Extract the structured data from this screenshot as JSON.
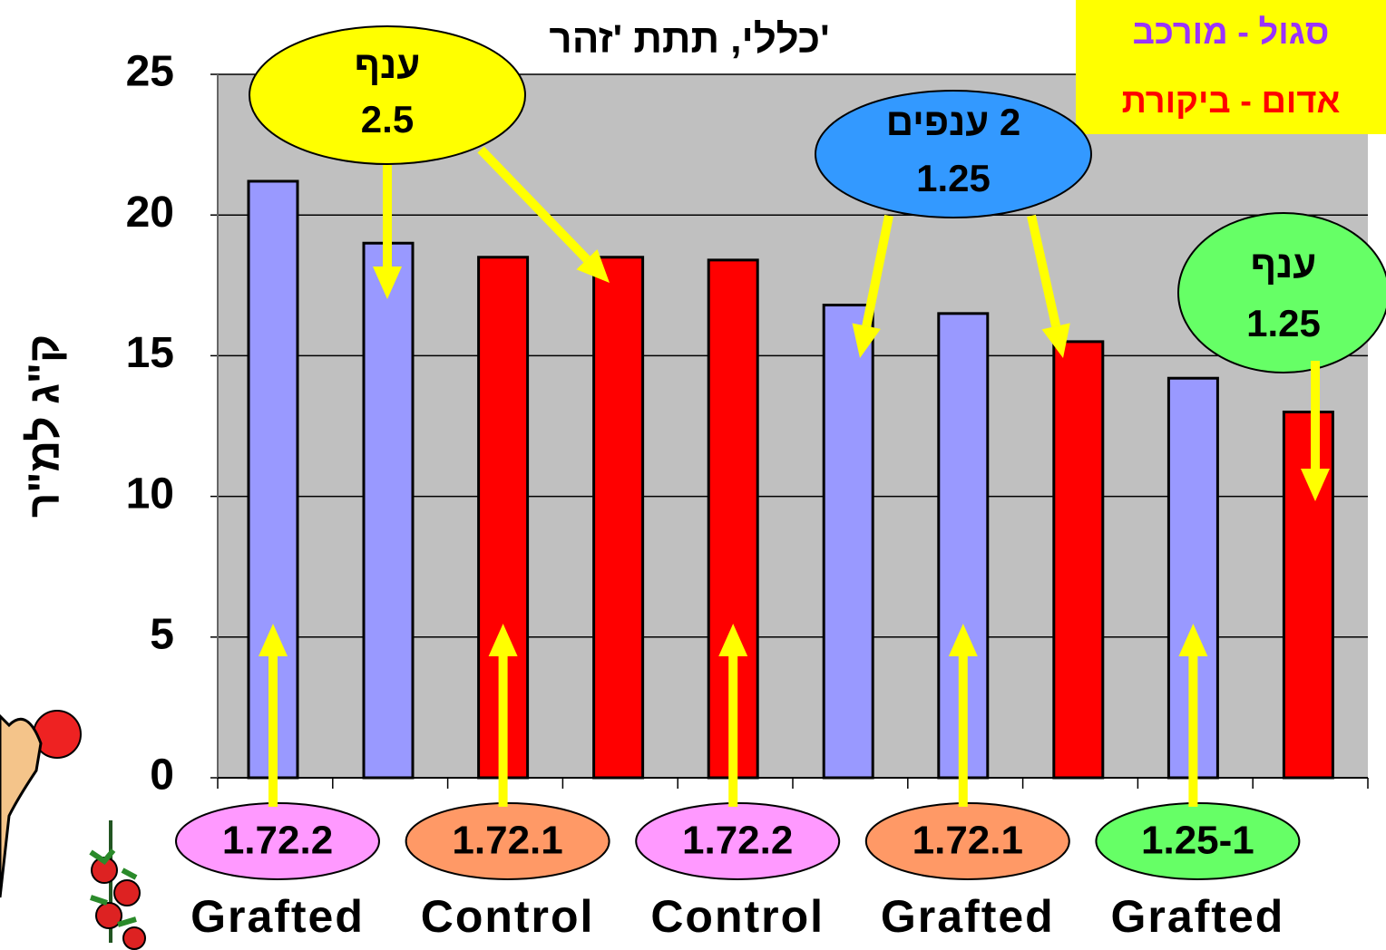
{
  "chart_data": {
    "type": "bar",
    "title": "כללי, תתת 'זהר'",
    "y_label": "ק\"ג למ\"ר",
    "categories": [
      "Grafted",
      "Control",
      "Control",
      "Grafted",
      "Grafted"
    ],
    "category_tags": [
      {
        "text": "1.72.2",
        "color": "#ff99ff"
      },
      {
        "text": "1.72.1",
        "color": "#ff9966"
      },
      {
        "text": "1.72.2",
        "color": "#ff99ff"
      },
      {
        "text": "1.72.1",
        "color": "#ff9966"
      },
      {
        "text": "1.25-1",
        "color": "#66ff66"
      }
    ],
    "series": [
      {
        "colors": [
          "#9999ff",
          "#ff0000",
          "#ff0000",
          "#9999ff",
          "#9999ff"
        ],
        "values": [
          21.2,
          18.5,
          18.4,
          16.5,
          14.2
        ]
      },
      {
        "colors": [
          "#9999ff",
          "#ff0000",
          "#9999ff",
          "#ff0000",
          "#ff0000"
        ],
        "values": [
          19.0,
          18.5,
          16.8,
          15.5,
          13.0
        ]
      }
    ],
    "ylim": [
      0,
      25
    ],
    "yticks": [
      0,
      5,
      10,
      15,
      20,
      25
    ],
    "grid": true,
    "legend": [
      {
        "label": "סגול - מורכב",
        "color": "#9933ff"
      },
      {
        "label": "אדום - ביקורת",
        "color": "#ff0000"
      }
    ],
    "annotations": [
      {
        "lines": [
          "ענף",
          "2.5"
        ],
        "color": "#ffff00"
      },
      {
        "lines": [
          "2 ענפים",
          "1.25"
        ],
        "color": "#3399ff"
      },
      {
        "lines": [
          "ענף",
          "1.25"
        ],
        "color": "#66ff66"
      }
    ]
  }
}
